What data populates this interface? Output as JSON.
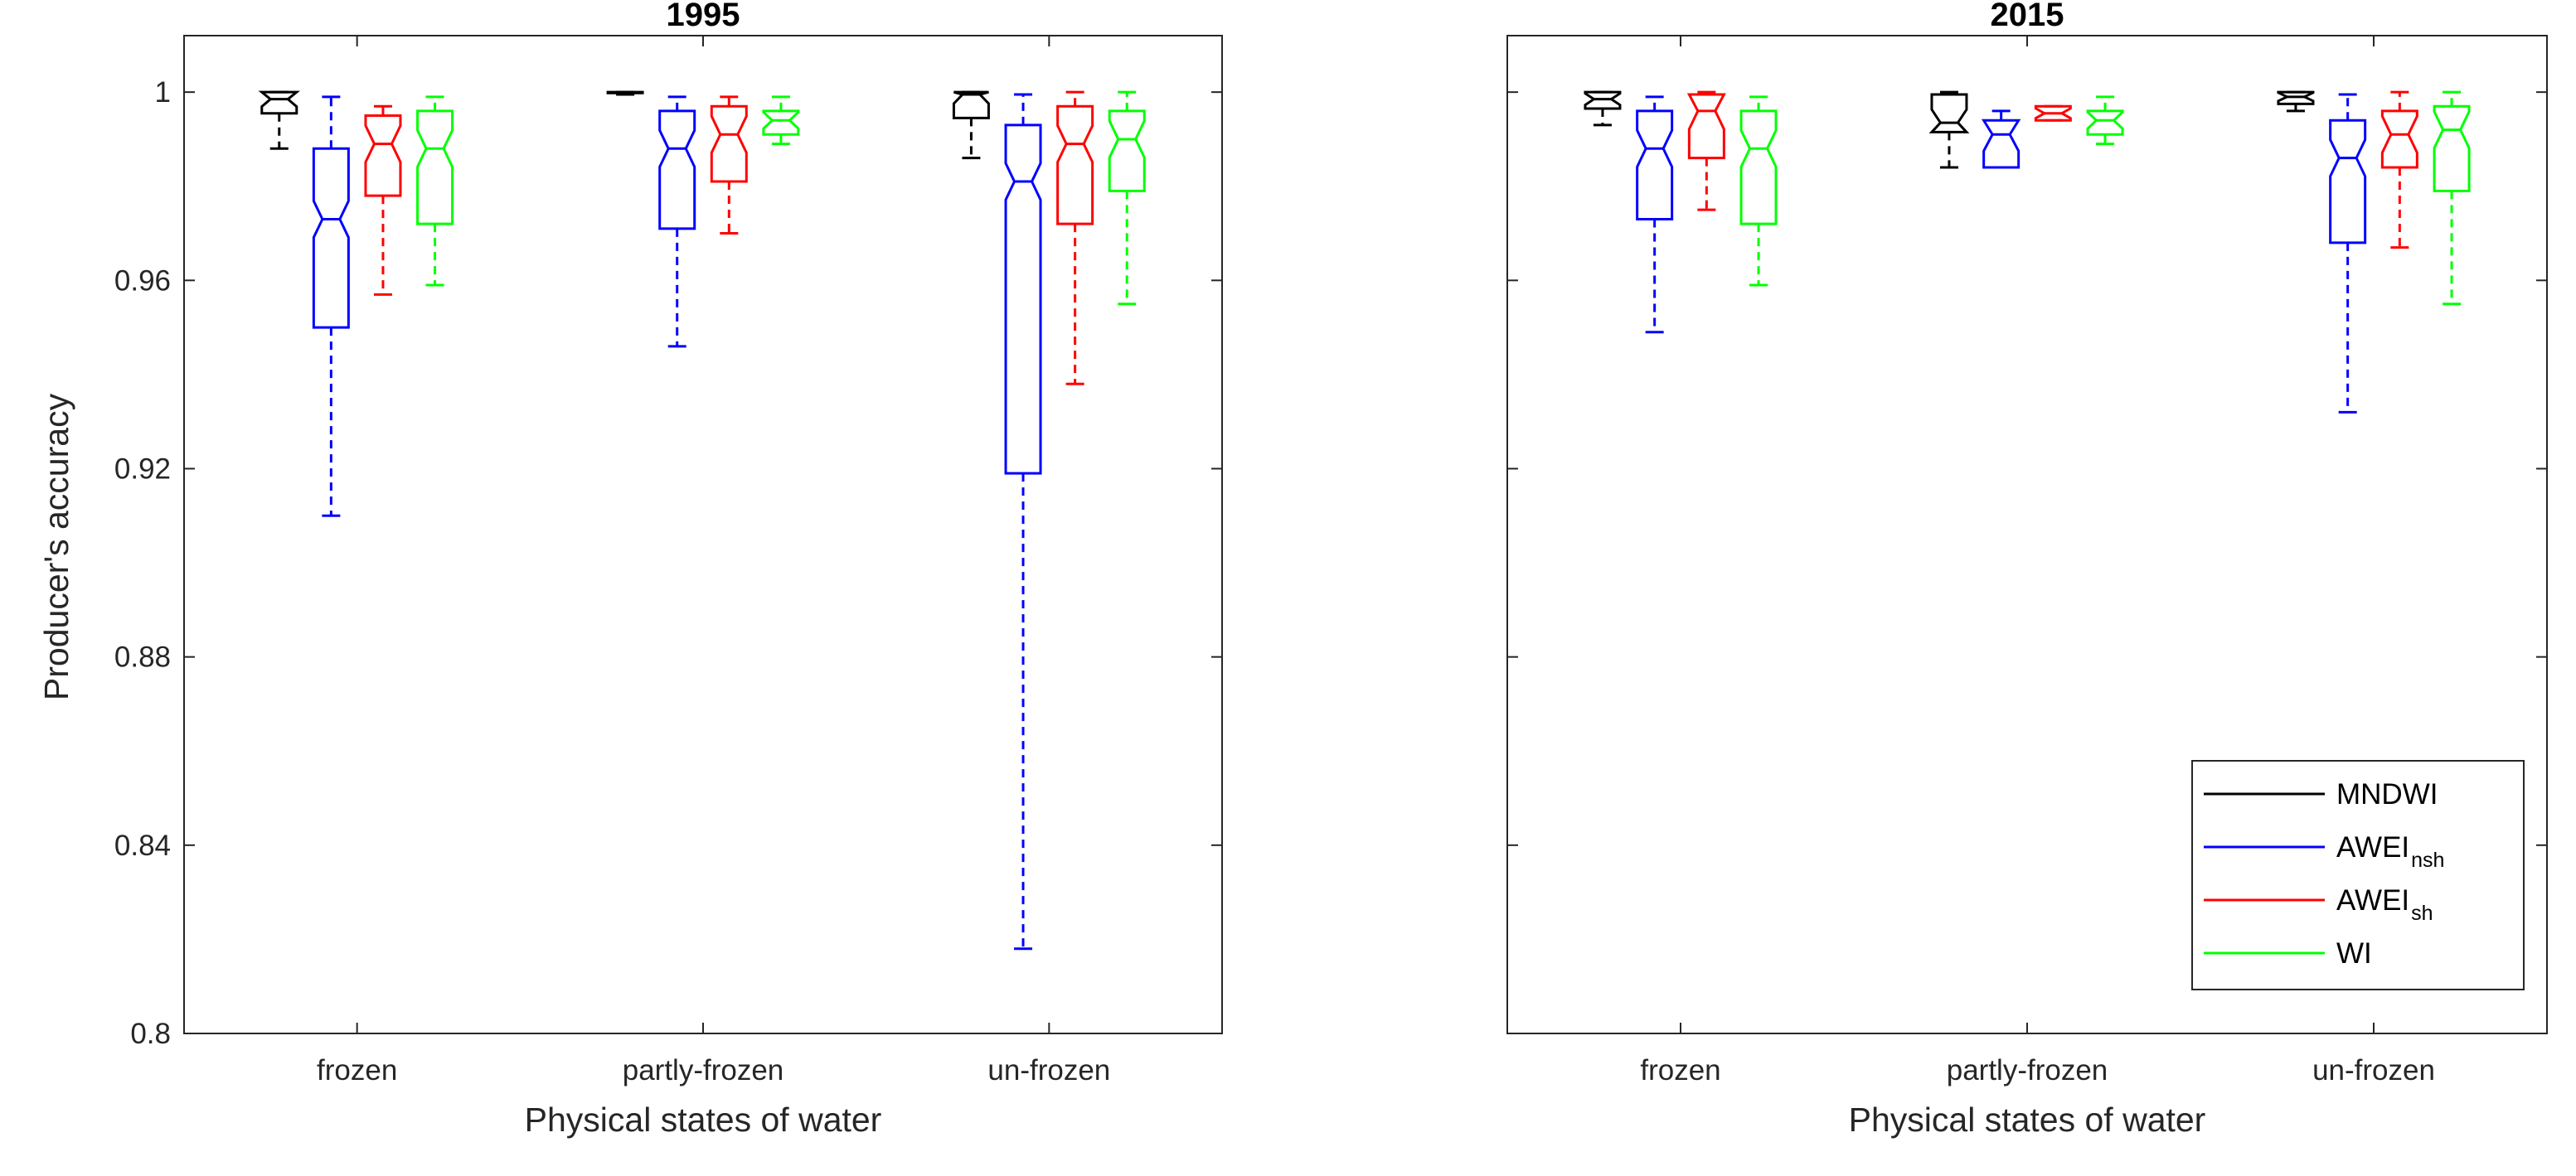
{
  "chart_data": [
    {
      "type": "boxplot",
      "title": "1995",
      "xlabel": "Physical states of water",
      "ylabel": "Producer's accuracy",
      "ylim": [
        0.8,
        1.012
      ],
      "yticks": [
        "0.8",
        "0.84",
        "0.88",
        "0.92",
        "0.96",
        "1"
      ],
      "categories": [
        "frozen",
        "partly-frozen",
        "un-frozen"
      ],
      "series": [
        {
          "name": "MNDWI",
          "color": "#000000",
          "boxes": [
            {
              "min": 0.988,
              "q1": 0.9955,
              "median": 0.9985,
              "q3": 1.0,
              "max": 1.0
            },
            {
              "min": 0.9995,
              "q1": 0.9998,
              "median": 0.9999,
              "q3": 1.0,
              "max": 1.0
            },
            {
              "min": 0.986,
              "q1": 0.9945,
              "median": 0.9995,
              "q3": 1.0,
              "max": 1.0
            }
          ]
        },
        {
          "name": "AWEI_nsh",
          "color": "#0000ff",
          "boxes": [
            {
              "min": 0.91,
              "q1": 0.95,
              "median": 0.973,
              "q3": 0.988,
              "max": 0.999
            },
            {
              "min": 0.946,
              "q1": 0.971,
              "median": 0.988,
              "q3": 0.996,
              "max": 0.999
            },
            {
              "min": 0.818,
              "q1": 0.919,
              "median": 0.981,
              "q3": 0.993,
              "max": 0.9995
            }
          ]
        },
        {
          "name": "AWEI_sh",
          "color": "#ff0000",
          "boxes": [
            {
              "min": 0.957,
              "q1": 0.978,
              "median": 0.989,
              "q3": 0.995,
              "max": 0.997
            },
            {
              "min": 0.97,
              "q1": 0.981,
              "median": 0.991,
              "q3": 0.997,
              "max": 0.999
            },
            {
              "min": 0.938,
              "q1": 0.972,
              "median": 0.989,
              "q3": 0.997,
              "max": 1.0
            }
          ]
        },
        {
          "name": "WI",
          "color": "#00ff00",
          "boxes": [
            {
              "min": 0.959,
              "q1": 0.972,
              "median": 0.988,
              "q3": 0.996,
              "max": 0.999
            },
            {
              "min": 0.989,
              "q1": 0.991,
              "median": 0.994,
              "q3": 0.996,
              "max": 0.999
            },
            {
              "min": 0.955,
              "q1": 0.979,
              "median": 0.99,
              "q3": 0.996,
              "max": 1.0
            }
          ]
        }
      ]
    },
    {
      "type": "boxplot",
      "title": "2015",
      "xlabel": "Physical states of water",
      "ylabel": "",
      "ylim": [
        0.8,
        1.012
      ],
      "categories": [
        "frozen",
        "partly-frozen",
        "un-frozen"
      ],
      "series": [
        {
          "name": "MNDWI",
          "color": "#000000",
          "boxes": [
            {
              "min": 0.993,
              "q1": 0.9965,
              "median": 0.9985,
              "q3": 1.0,
              "max": 1.0
            },
            {
              "min": 0.984,
              "q1": 0.9915,
              "median": 0.9935,
              "q3": 0.9995,
              "max": 1.0
            },
            {
              "min": 0.996,
              "q1": 0.9975,
              "median": 0.999,
              "q3": 1.0,
              "max": 1.0
            }
          ]
        },
        {
          "name": "AWEI_nsh",
          "color": "#0000ff",
          "boxes": [
            {
              "min": 0.949,
              "q1": 0.973,
              "median": 0.988,
              "q3": 0.996,
              "max": 0.999
            },
            {
              "min": 0.984,
              "q1": 0.984,
              "median": 0.991,
              "q3": 0.994,
              "max": 0.996
            },
            {
              "min": 0.932,
              "q1": 0.968,
              "median": 0.986,
              "q3": 0.994,
              "max": 0.9995
            }
          ]
        },
        {
          "name": "AWEI_sh",
          "color": "#ff0000",
          "boxes": [
            {
              "min": 0.975,
              "q1": 0.986,
              "median": 0.996,
              "q3": 0.9995,
              "max": 1.0
            },
            {
              "min": 0.994,
              "q1": 0.994,
              "median": 0.9955,
              "q3": 0.997,
              "max": 0.997
            },
            {
              "min": 0.967,
              "q1": 0.984,
              "median": 0.991,
              "q3": 0.996,
              "max": 1.0
            }
          ]
        },
        {
          "name": "WI",
          "color": "#00ff00",
          "boxes": [
            {
              "min": 0.959,
              "q1": 0.972,
              "median": 0.988,
              "q3": 0.996,
              "max": 0.999
            },
            {
              "min": 0.989,
              "q1": 0.991,
              "median": 0.994,
              "q3": 0.996,
              "max": 0.999
            },
            {
              "min": 0.955,
              "q1": 0.979,
              "median": 0.992,
              "q3": 0.997,
              "max": 1.0
            }
          ]
        }
      ]
    }
  ],
  "legend": {
    "placement": "bottom-right of 2015 panel",
    "entries": [
      {
        "label": "MNDWI",
        "sub": "",
        "color": "#000000"
      },
      {
        "label": "AWEI",
        "sub": "nsh",
        "color": "#0000ff"
      },
      {
        "label": "AWEI",
        "sub": "sh",
        "color": "#ff0000"
      },
      {
        "label": "WI",
        "sub": "",
        "color": "#00ff00"
      }
    ]
  }
}
